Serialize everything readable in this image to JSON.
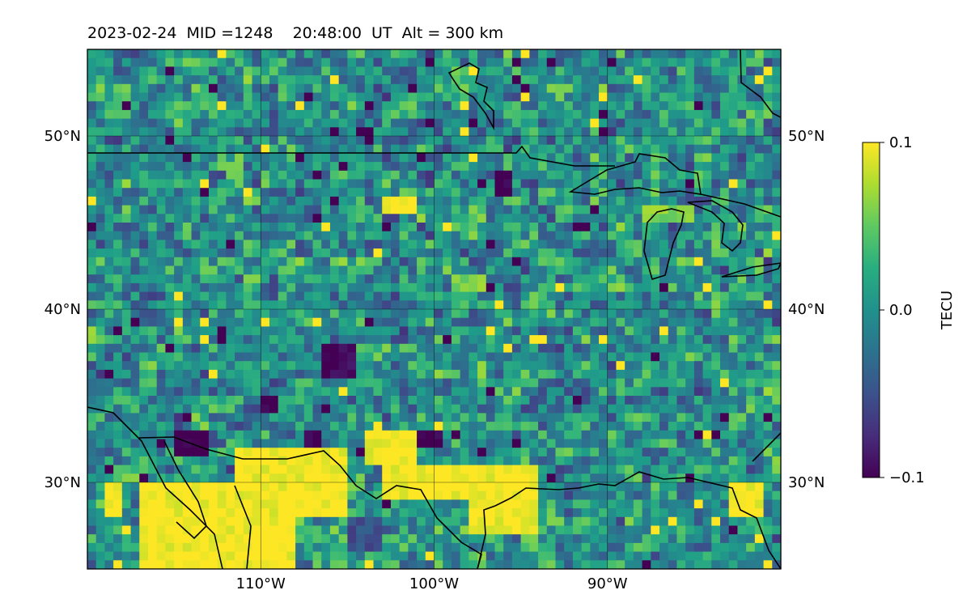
{
  "title": "2023-02-24  MID =1248    20:48:00  UT  Alt = 300 km",
  "map": {
    "lon_range": [
      -120,
      -80
    ],
    "lat_range": [
      25,
      55
    ],
    "projection": "PlateCarree",
    "gridlines": true,
    "coastlines": true,
    "borders": true,
    "x_ticks": [
      {
        "lon": -110,
        "label": "110°W"
      },
      {
        "lon": -100,
        "label": "100°W"
      },
      {
        "lon": -90,
        "label": "90°W"
      }
    ],
    "y_ticks": [
      {
        "lat": 30,
        "label": "30°N"
      },
      {
        "lat": 40,
        "label": "40°N"
      },
      {
        "lat": 50,
        "label": "50°N"
      }
    ]
  },
  "colorbar": {
    "label": "TECU",
    "colormap": "viridis",
    "vmin": -0.1,
    "vmax": 0.1,
    "ticks": [
      {
        "value": 0.1,
        "label": "0.1"
      },
      {
        "value": 0.0,
        "label": "0.0"
      },
      {
        "value": -0.1,
        "label": "−0.1"
      }
    ]
  },
  "colors": {
    "low": "#440154",
    "mid": "#21918c",
    "high": "#fde725"
  },
  "chart_data": {
    "type": "heatmap",
    "title": "2023-02-24  MID =1248    20:48:00  UT  Alt = 300 km",
    "xlabel": "",
    "ylabel": "",
    "zlabel": "TECU",
    "xlim": [
      -120,
      -80
    ],
    "ylim": [
      25,
      55
    ],
    "zlim": [
      -0.1,
      0.1
    ],
    "cell_size_deg": 0.5,
    "background_value": 0.0,
    "features": [
      {
        "lon": [
          -117,
          -108
        ],
        "lat": [
          25,
          30
        ],
        "value": 0.1
      },
      {
        "lon": [
          -111.5,
          -105
        ],
        "lat": [
          28,
          32
        ],
        "value": 0.1
      },
      {
        "lon": [
          -103,
          -98
        ],
        "lat": [
          29,
          31
        ],
        "value": 0.1
      },
      {
        "lon": [
          -98,
          -94
        ],
        "lat": [
          27,
          31
        ],
        "value": 0.1
      },
      {
        "lon": [
          -104,
          -101
        ],
        "lat": [
          31,
          33
        ],
        "value": 0.1
      },
      {
        "lon": [
          -119,
          -118
        ],
        "lat": [
          28,
          30
        ],
        "value": 0.1
      },
      {
        "lon": [
          -83,
          -81
        ],
        "lat": [
          28,
          30
        ],
        "value": 0.1
      },
      {
        "lon": [
          -106.5,
          -104.5
        ],
        "lat": [
          36,
          38
        ],
        "value": -0.1
      },
      {
        "lon": [
          -110,
          -109
        ],
        "lat": [
          34,
          35
        ],
        "value": -0.1
      },
      {
        "lon": [
          -115,
          -113
        ],
        "lat": [
          31.5,
          33
        ],
        "value": -0.1
      },
      {
        "lon": [
          -101,
          -99.5
        ],
        "lat": [
          32,
          33
        ],
        "value": -0.1
      },
      {
        "lon": [
          -107.5,
          -106.5
        ],
        "lat": [
          32,
          33
        ],
        "value": -0.1
      },
      {
        "lon": [
          -105,
          -103
        ],
        "lat": [
          26,
          28
        ],
        "value": -0.05
      },
      {
        "lon": [
          -96.5,
          -95.5
        ],
        "lat": [
          46.5,
          48
        ],
        "value": -0.1
      },
      {
        "lon": [
          -88,
          -85
        ],
        "lat": [
          45,
          46
        ],
        "value": 0.06
      },
      {
        "lon": [
          -103,
          -101
        ],
        "lat": [
          45.5,
          46.5
        ],
        "value": 0.1
      },
      {
        "lon": [
          -99,
          -97
        ],
        "lat": [
          41,
          42
        ],
        "value": 0.06
      }
    ]
  }
}
